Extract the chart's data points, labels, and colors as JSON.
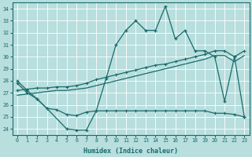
{
  "xlabel": "Humidex (Indice chaleur)",
  "bg_color": "#b8dede",
  "grid_color": "#ffffff",
  "line_color": "#1a6b6b",
  "xlim": [
    -0.5,
    23.5
  ],
  "ylim": [
    23.5,
    34.5
  ],
  "yticks": [
    24,
    25,
    26,
    27,
    28,
    29,
    30,
    31,
    32,
    33,
    34
  ],
  "xticks": [
    0,
    1,
    2,
    3,
    4,
    5,
    6,
    7,
    8,
    9,
    10,
    11,
    12,
    13,
    14,
    15,
    16,
    17,
    18,
    19,
    20,
    21,
    22,
    23
  ],
  "s1_x": [
    0,
    1,
    2,
    3,
    5,
    6,
    7,
    8,
    9,
    10,
    11,
    12,
    13,
    14,
    15,
    16,
    17,
    18,
    19,
    20,
    21,
    22,
    23
  ],
  "s1_y": [
    28.0,
    27.2,
    26.5,
    25.7,
    24.0,
    23.9,
    23.9,
    25.5,
    28.2,
    31.0,
    32.2,
    33.0,
    32.2,
    32.2,
    34.2,
    31.5,
    32.2,
    30.5,
    30.5,
    30.0,
    26.3,
    30.0,
    25.0
  ],
  "s2_x": [
    0,
    1,
    2,
    3,
    4,
    5,
    6,
    7,
    8,
    9,
    10,
    11,
    12,
    13,
    14,
    15,
    16,
    17,
    18,
    19,
    20,
    21,
    22,
    23
  ],
  "s2_y": [
    27.2,
    27.3,
    27.4,
    27.4,
    27.5,
    27.5,
    27.6,
    27.8,
    28.1,
    28.3,
    28.5,
    28.7,
    28.9,
    29.1,
    29.3,
    29.4,
    29.6,
    29.8,
    30.0,
    30.2,
    30.5,
    30.5,
    30.0,
    30.5
  ],
  "s3_x": [
    0,
    1,
    2,
    3,
    4,
    5,
    6,
    7,
    8,
    9,
    10,
    11,
    12,
    13,
    14,
    15,
    16,
    17,
    18,
    19,
    20,
    21,
    22,
    23
  ],
  "s3_y": [
    26.8,
    26.9,
    27.0,
    27.1,
    27.2,
    27.2,
    27.3,
    27.4,
    27.6,
    27.8,
    28.0,
    28.2,
    28.4,
    28.6,
    28.8,
    29.0,
    29.2,
    29.4,
    29.6,
    29.8,
    30.1,
    30.1,
    29.6,
    30.1
  ],
  "s4_x": [
    0,
    1,
    2,
    3,
    4,
    5,
    6,
    7,
    8,
    9,
    10,
    11,
    12,
    13,
    14,
    15,
    16,
    17,
    18,
    19,
    20,
    21,
    22,
    23
  ],
  "s4_y": [
    27.8,
    27.0,
    26.5,
    25.7,
    25.6,
    25.2,
    25.1,
    25.4,
    25.5,
    25.5,
    25.5,
    25.5,
    25.5,
    25.5,
    25.5,
    25.5,
    25.5,
    25.5,
    25.5,
    25.5,
    25.3,
    25.3,
    25.2,
    25.0
  ]
}
